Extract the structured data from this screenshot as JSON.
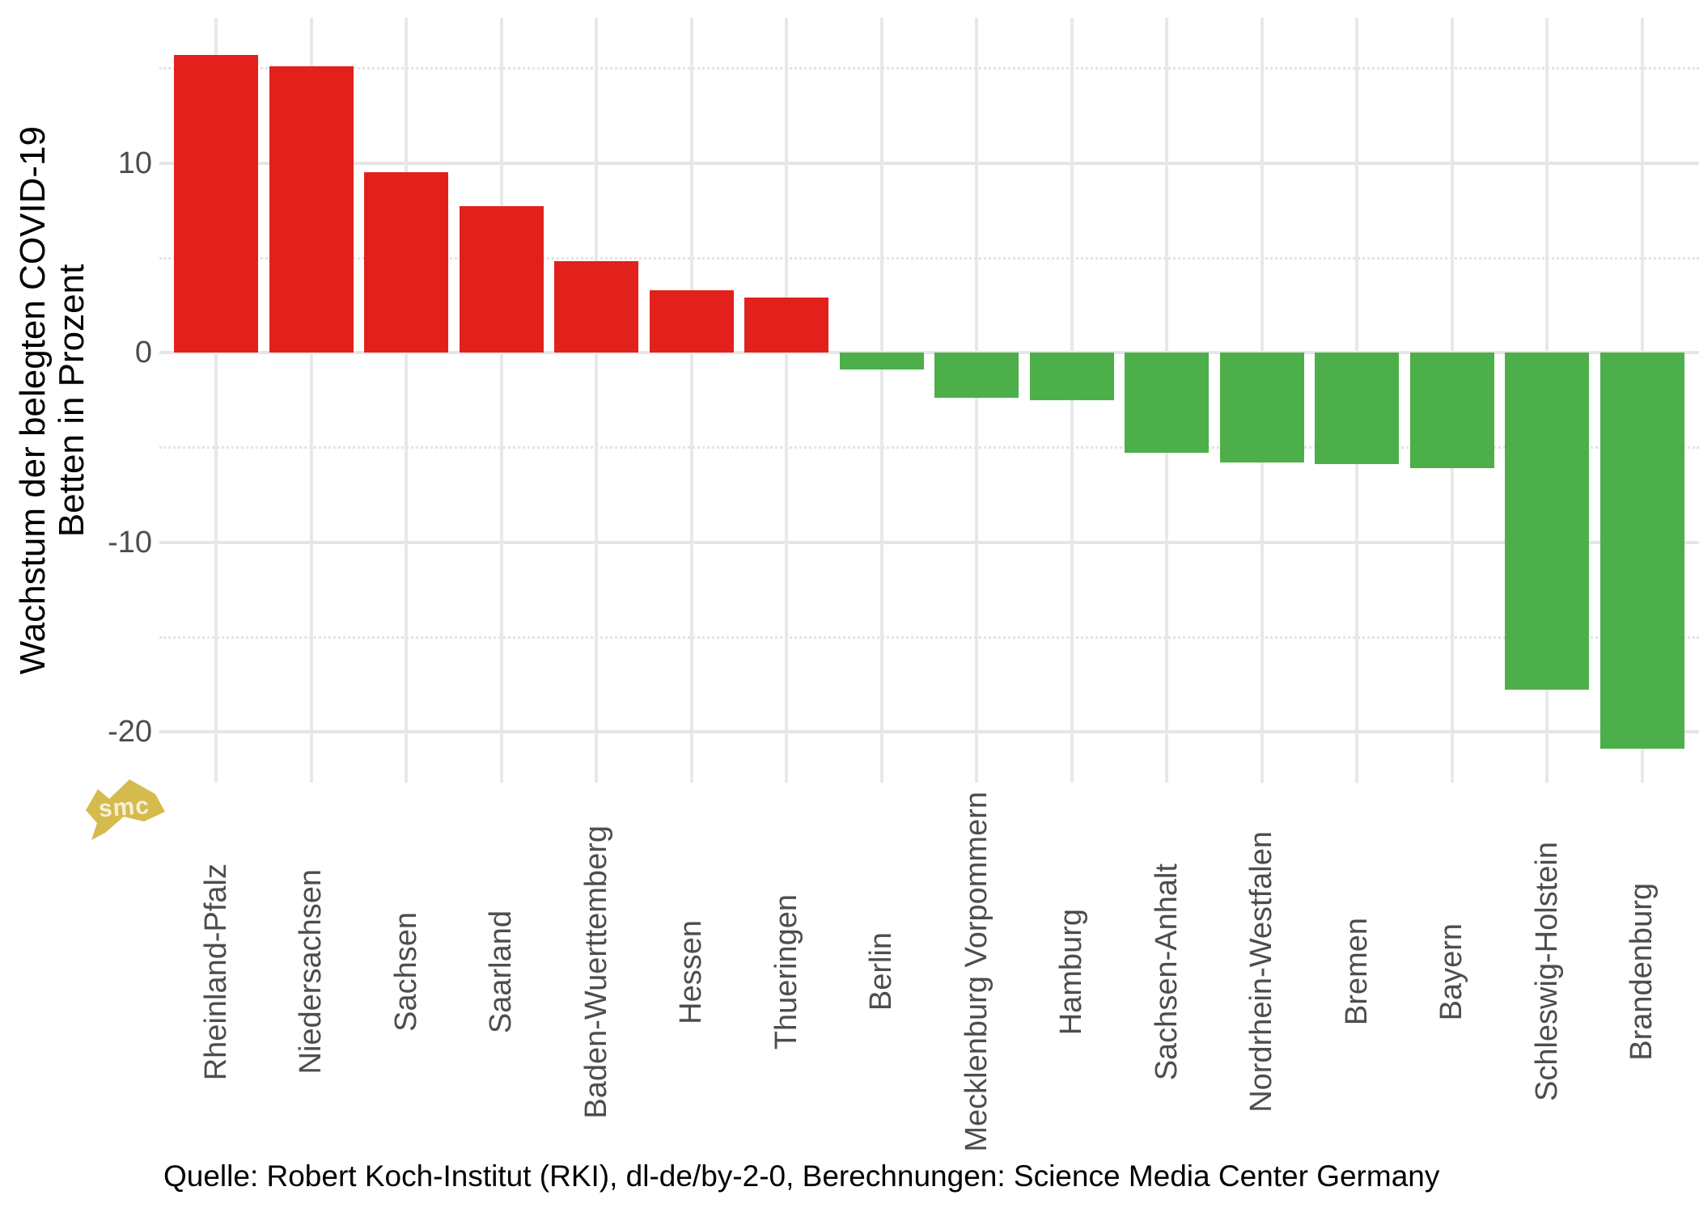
{
  "chart_data": {
    "type": "bar",
    "title": "",
    "ylabel_lines": [
      "Wachstum der belegten COVID-19",
      "Betten in Prozent"
    ],
    "categories": [
      "Rheinland-Pfalz",
      "Niedersachsen",
      "Sachsen",
      "Saarland",
      "Baden-Wuerttemberg",
      "Hessen",
      "Thueringen",
      "Berlin",
      "Mecklenburg Vorpommern",
      "Hamburg",
      "Sachsen-Anhalt",
      "Nordrhein-Westfalen",
      "Bremen",
      "Bayern",
      "Schleswig-Holstein",
      "Brandenburg"
    ],
    "values": [
      15.7,
      15.1,
      9.5,
      7.7,
      4.8,
      3.3,
      2.9,
      -0.9,
      -2.4,
      -2.5,
      -5.3,
      -5.8,
      -5.9,
      -6.1,
      -17.8,
      -20.9
    ],
    "yticks_major": [
      10,
      0,
      -10,
      -20
    ],
    "yticks_minor": [
      15,
      5,
      -5,
      -15
    ],
    "ylim": [
      -22.7,
      17.7
    ],
    "grid": "on",
    "legend": "none",
    "bar_color_positive": "#E2211C",
    "bar_color_negative": "#4DAF4A",
    "axis_text_color": "#4D4D4D",
    "caption": "Quelle: Robert Koch-Institut (RKI), dl-de/by-2-0, Berechnungen: Science Media Center Germany",
    "logo_text": "smc",
    "logo_color": "#D5BB4E"
  }
}
